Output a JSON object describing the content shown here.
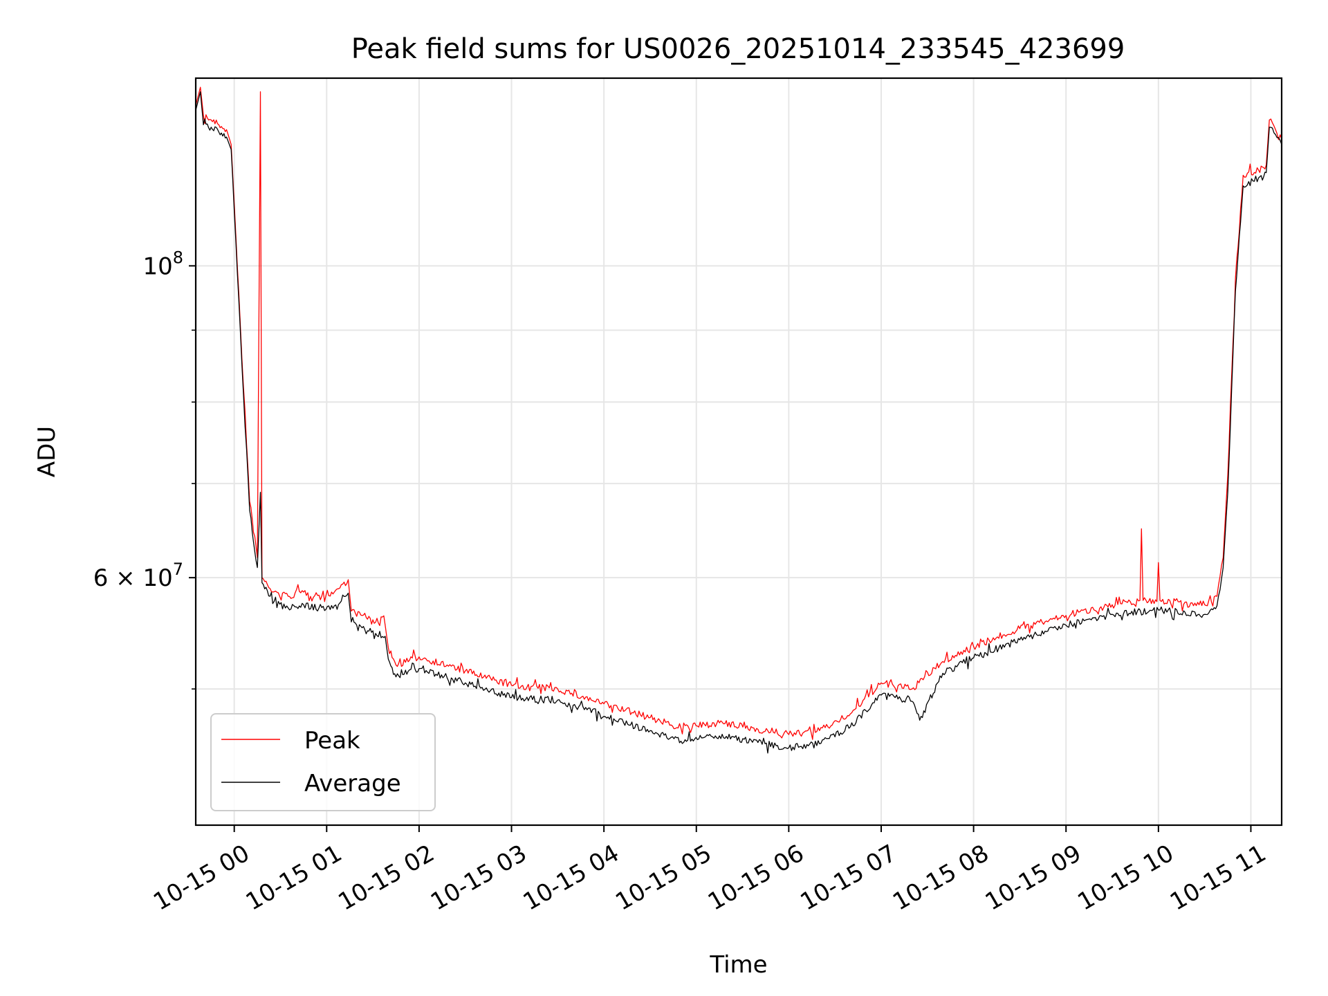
{
  "chart_data": {
    "type": "line",
    "title": "Peak field sums for US0026_20251014_233545_423699",
    "xlabel": "Time",
    "ylabel": "ADU",
    "yscale": "log",
    "xlim": [
      "2025-10-14 23:35",
      "2025-10-15 11:20"
    ],
    "ylim": [
      40000000,
      136000000
    ],
    "grid": true,
    "legend": {
      "position": "lower-left",
      "entries": [
        "Peak",
        "Average"
      ]
    },
    "x_ticks": [
      {
        "value": "2025-10-15 00:00",
        "label": "10-15 00"
      },
      {
        "value": "2025-10-15 01:00",
        "label": "10-15 01"
      },
      {
        "value": "2025-10-15 02:00",
        "label": "10-15 02"
      },
      {
        "value": "2025-10-15 03:00",
        "label": "10-15 03"
      },
      {
        "value": "2025-10-15 04:00",
        "label": "10-15 04"
      },
      {
        "value": "2025-10-15 05:00",
        "label": "10-15 05"
      },
      {
        "value": "2025-10-15 06:00",
        "label": "10-15 06"
      },
      {
        "value": "2025-10-15 07:00",
        "label": "10-15 07"
      },
      {
        "value": "2025-10-15 08:00",
        "label": "10-15 08"
      },
      {
        "value": "2025-10-15 09:00",
        "label": "10-15 09"
      },
      {
        "value": "2025-10-15 10:00",
        "label": "10-15 10"
      },
      {
        "value": "2025-10-15 11:00",
        "label": "10-15 11"
      }
    ],
    "y_ticks_major": [
      {
        "value": 60000000,
        "label": "6 × 10",
        "exponent": "7"
      },
      {
        "value": 100000000,
        "label": "10",
        "exponent": "8"
      }
    ],
    "y_ticks_minor": [
      50000000,
      70000000,
      80000000,
      90000000
    ],
    "series": [
      {
        "name": "Peak",
        "color": "#ff0000",
        "points": [
          [
            "2025-10-14 23:35",
            130000000
          ],
          [
            "2025-10-14 23:38",
            134000000
          ],
          [
            "2025-10-14 23:40",
            128000000
          ],
          [
            "2025-10-14 23:45",
            127000000
          ],
          [
            "2025-10-14 23:50",
            126000000
          ],
          [
            "2025-10-14 23:55",
            125000000
          ],
          [
            "2025-10-14 23:58",
            122000000
          ],
          [
            "2025-10-15 00:02",
            100000000
          ],
          [
            "2025-10-15 00:06",
            82000000
          ],
          [
            "2025-10-15 00:10",
            68000000
          ],
          [
            "2025-10-15 00:15",
            62000000
          ],
          [
            "2025-10-15 00:17",
            133000000
          ],
          [
            "2025-10-15 00:18",
            60000000
          ],
          [
            "2025-10-15 00:25",
            58600000
          ],
          [
            "2025-10-15 00:35",
            58200000
          ],
          [
            "2025-10-15 00:45",
            58600000
          ],
          [
            "2025-10-15 00:55",
            58300000
          ],
          [
            "2025-10-15 01:05",
            58600000
          ],
          [
            "2025-10-15 01:14",
            59800000
          ],
          [
            "2025-10-15 01:16",
            56800000
          ],
          [
            "2025-10-15 01:30",
            56000000
          ],
          [
            "2025-10-15 01:38",
            55500000
          ],
          [
            "2025-10-15 01:40",
            53500000
          ],
          [
            "2025-10-15 01:45",
            52000000
          ],
          [
            "2025-10-15 02:00",
            52700000
          ],
          [
            "2025-10-15 02:30",
            51500000
          ],
          [
            "2025-10-15 03:00",
            50300000
          ],
          [
            "2025-10-15 03:30",
            50000000
          ],
          [
            "2025-10-15 04:00",
            48800000
          ],
          [
            "2025-10-15 04:30",
            47700000
          ],
          [
            "2025-10-15 04:50",
            46900000
          ],
          [
            "2025-10-15 05:15",
            47300000
          ],
          [
            "2025-10-15 05:40",
            46800000
          ],
          [
            "2025-10-15 06:00",
            46400000
          ],
          [
            "2025-10-15 06:20",
            46700000
          ],
          [
            "2025-10-15 06:40",
            48000000
          ],
          [
            "2025-10-15 07:00",
            50500000
          ],
          [
            "2025-10-15 07:20",
            50000000
          ],
          [
            "2025-10-15 07:40",
            52300000
          ],
          [
            "2025-10-15 08:00",
            53600000
          ],
          [
            "2025-10-15 08:30",
            55200000
          ],
          [
            "2025-10-15 09:00",
            56400000
          ],
          [
            "2025-10-15 09:30",
            57400000
          ],
          [
            "2025-10-15 09:48",
            57800000
          ],
          [
            "2025-10-15 09:49",
            65000000
          ],
          [
            "2025-10-15 09:50",
            57800000
          ],
          [
            "2025-10-15 09:59",
            57700000
          ],
          [
            "2025-10-15 10:00",
            61500000
          ],
          [
            "2025-10-15 10:01",
            57800000
          ],
          [
            "2025-10-15 10:30",
            57400000
          ],
          [
            "2025-10-15 10:38",
            58200000
          ],
          [
            "2025-10-15 10:42",
            62000000
          ],
          [
            "2025-10-15 10:45",
            71000000
          ],
          [
            "2025-10-15 10:50",
            98000000
          ],
          [
            "2025-10-15 10:55",
            116000000
          ],
          [
            "2025-10-15 11:05",
            117000000
          ],
          [
            "2025-10-15 11:10",
            118000000
          ],
          [
            "2025-10-15 11:12",
            127000000
          ],
          [
            "2025-10-15 11:16",
            125000000
          ],
          [
            "2025-10-15 11:20",
            123000000
          ]
        ]
      },
      {
        "name": "Average",
        "color": "#000000",
        "points": [
          [
            "2025-10-14 23:35",
            129000000
          ],
          [
            "2025-10-14 23:38",
            133000000
          ],
          [
            "2025-10-14 23:40",
            126000000
          ],
          [
            "2025-10-14 23:45",
            125500000
          ],
          [
            "2025-10-14 23:50",
            124500000
          ],
          [
            "2025-10-14 23:55",
            123500000
          ],
          [
            "2025-10-14 23:58",
            121000000
          ],
          [
            "2025-10-15 00:02",
            99000000
          ],
          [
            "2025-10-15 00:06",
            81000000
          ],
          [
            "2025-10-15 00:10",
            67000000
          ],
          [
            "2025-10-15 00:15",
            61000000
          ],
          [
            "2025-10-15 00:17",
            69000000
          ],
          [
            "2025-10-15 00:18",
            59500000
          ],
          [
            "2025-10-15 00:25",
            57500000
          ],
          [
            "2025-10-15 00:35",
            57100000
          ],
          [
            "2025-10-15 00:45",
            57400000
          ],
          [
            "2025-10-15 00:55",
            57100000
          ],
          [
            "2025-10-15 01:05",
            57300000
          ],
          [
            "2025-10-15 01:14",
            58500000
          ],
          [
            "2025-10-15 01:16",
            55800000
          ],
          [
            "2025-10-15 01:30",
            55000000
          ],
          [
            "2025-10-15 01:38",
            54500000
          ],
          [
            "2025-10-15 01:40",
            52500000
          ],
          [
            "2025-10-15 01:45",
            51000000
          ],
          [
            "2025-10-15 02:00",
            51700000
          ],
          [
            "2025-10-15 02:30",
            50500000
          ],
          [
            "2025-10-15 03:00",
            49300000
          ],
          [
            "2025-10-15 03:30",
            49100000
          ],
          [
            "2025-10-15 04:00",
            47800000
          ],
          [
            "2025-10-15 04:30",
            46700000
          ],
          [
            "2025-10-15 04:50",
            45900000
          ],
          [
            "2025-10-15 05:15",
            46300000
          ],
          [
            "2025-10-15 05:40",
            45800000
          ],
          [
            "2025-10-15 06:00",
            45400000
          ],
          [
            "2025-10-15 06:20",
            45700000
          ],
          [
            "2025-10-15 06:40",
            47000000
          ],
          [
            "2025-10-15 07:00",
            49500000
          ],
          [
            "2025-10-15 07:20",
            49000000
          ],
          [
            "2025-10-15 07:25",
            47500000
          ],
          [
            "2025-10-15 07:40",
            51300000
          ],
          [
            "2025-10-15 08:00",
            52600000
          ],
          [
            "2025-10-15 08:30",
            54200000
          ],
          [
            "2025-10-15 09:00",
            55500000
          ],
          [
            "2025-10-15 09:30",
            56500000
          ],
          [
            "2025-10-15 10:00",
            56900000
          ],
          [
            "2025-10-15 10:30",
            56500000
          ],
          [
            "2025-10-15 10:38",
            57300000
          ],
          [
            "2025-10-15 10:42",
            61000000
          ],
          [
            "2025-10-15 10:45",
            69000000
          ],
          [
            "2025-10-15 10:50",
            96000000
          ],
          [
            "2025-10-15 10:55",
            114000000
          ],
          [
            "2025-10-15 11:05",
            115500000
          ],
          [
            "2025-10-15 11:10",
            116500000
          ],
          [
            "2025-10-15 11:12",
            125500000
          ],
          [
            "2025-10-15 11:16",
            124000000
          ],
          [
            "2025-10-15 11:20",
            122000000
          ]
        ]
      }
    ]
  }
}
